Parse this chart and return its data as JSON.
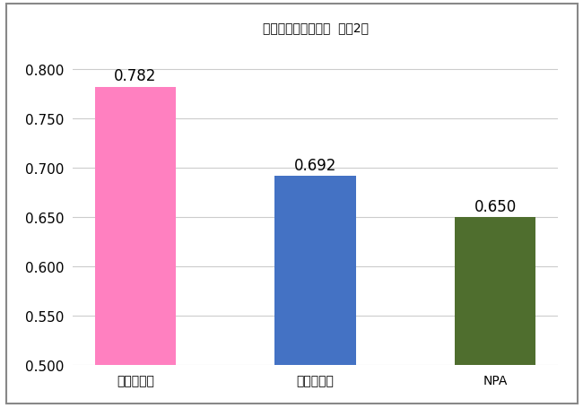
{
  "title": "神経質傾向の平均値  （図2）",
  "categories": [
    "日本人女性",
    "日本人男性",
    "NPA"
  ],
  "values": [
    0.782,
    0.692,
    0.65
  ],
  "bar_colors": [
    "#FF80C0",
    "#4472C4",
    "#4F6E2E"
  ],
  "ylim": [
    0.5,
    0.82
  ],
  "yticks": [
    0.5,
    0.55,
    0.6,
    0.65,
    0.7,
    0.75,
    0.8
  ],
  "title_fontsize": 20,
  "tick_fontsize": 11,
  "label_fontsize": 12,
  "value_fontsize": 12,
  "background_color": "#FFFFFF",
  "border_color": "#AAAAAA",
  "grid_color": "#CCCCCC"
}
